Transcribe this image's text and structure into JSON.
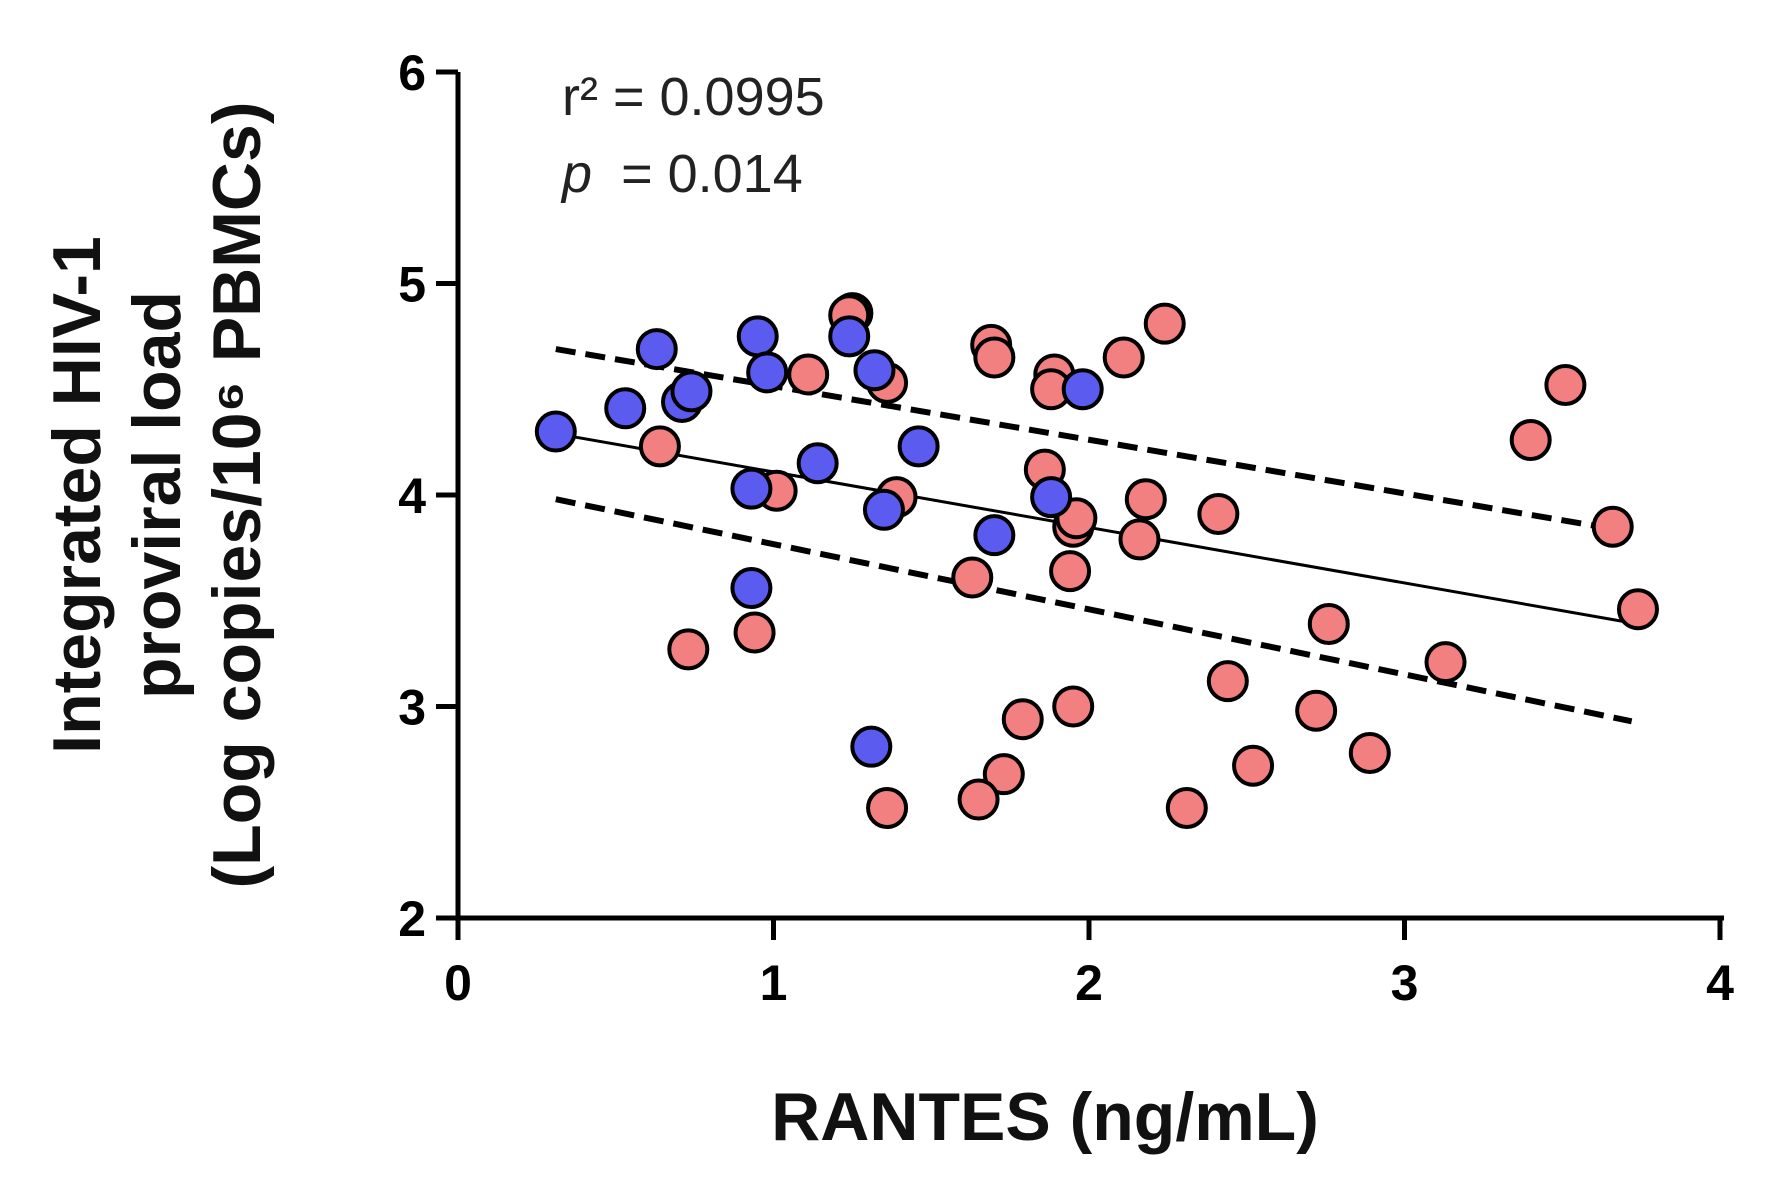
{
  "chart_data": {
    "type": "scatter",
    "xlabel": "RANTES (ng/mL)",
    "ylabel_lines": [
      "Integrated HIV-1",
      "proviral load",
      "(Log copies/10⁶ PBMCs)"
    ],
    "xlim": [
      0,
      4
    ],
    "ylim": [
      2,
      6
    ],
    "xticks": [
      "0",
      "1",
      "2",
      "3",
      "4"
    ],
    "yticks": [
      "2",
      "3",
      "4",
      "5",
      "6"
    ],
    "annotation": {
      "r2_label": "r² = 0.0995",
      "p_symbol": "p",
      "p_value": "= 0.014"
    },
    "series": [
      {
        "color": "#f28080",
        "points": [
          [
            1.25,
            4.86
          ],
          [
            1.24,
            4.85
          ],
          [
            1.69,
            4.71
          ],
          [
            1.7,
            4.65
          ],
          [
            1.11,
            4.57
          ],
          [
            1.36,
            4.53
          ],
          [
            1.89,
            4.57
          ],
          [
            1.88,
            4.5
          ],
          [
            2.11,
            4.65
          ],
          [
            2.24,
            4.81
          ],
          [
            3.51,
            4.52
          ],
          [
            3.4,
            4.26
          ],
          [
            3.66,
            3.85
          ],
          [
            3.74,
            3.46
          ],
          [
            0.64,
            4.23
          ],
          [
            1.01,
            4.02
          ],
          [
            1.39,
            3.99
          ],
          [
            1.86,
            4.12
          ],
          [
            1.95,
            3.85
          ],
          [
            1.96,
            3.89
          ],
          [
            2.18,
            3.98
          ],
          [
            2.16,
            3.79
          ],
          [
            2.41,
            3.91
          ],
          [
            1.94,
            3.64
          ],
          [
            1.63,
            3.61
          ],
          [
            2.76,
            3.39
          ],
          [
            3.13,
            3.21
          ],
          [
            0.73,
            3.27
          ],
          [
            0.94,
            3.35
          ],
          [
            2.44,
            3.12
          ],
          [
            1.79,
            2.94
          ],
          [
            1.95,
            3.0
          ],
          [
            2.72,
            2.98
          ],
          [
            2.89,
            2.78
          ],
          [
            2.52,
            2.72
          ],
          [
            1.73,
            2.68
          ],
          [
            1.65,
            2.56
          ],
          [
            1.36,
            2.52
          ],
          [
            2.31,
            2.52
          ]
        ]
      },
      {
        "color": "#5b5bf0",
        "points": [
          [
            0.31,
            4.3
          ],
          [
            0.53,
            4.41
          ],
          [
            0.63,
            4.69
          ],
          [
            0.71,
            4.44
          ],
          [
            0.74,
            4.49
          ],
          [
            0.95,
            4.75
          ],
          [
            0.98,
            4.58
          ],
          [
            1.24,
            4.75
          ],
          [
            1.32,
            4.59
          ],
          [
            1.14,
            4.15
          ],
          [
            1.46,
            4.23
          ],
          [
            0.93,
            4.03
          ],
          [
            1.35,
            3.93
          ],
          [
            1.7,
            3.81
          ],
          [
            1.88,
            3.99
          ],
          [
            1.98,
            4.5
          ],
          [
            0.93,
            3.56
          ],
          [
            1.31,
            2.81
          ]
        ]
      }
    ],
    "fit_line": {
      "x": [
        0.31,
        3.74
      ],
      "y": [
        4.29,
        3.39
      ]
    },
    "ci_upper": {
      "x": [
        0.31,
        3.66
      ],
      "y": [
        4.69,
        3.84
      ]
    },
    "ci_lower": {
      "x": [
        0.31,
        3.72
      ],
      "y": [
        3.98,
        2.93
      ]
    }
  }
}
